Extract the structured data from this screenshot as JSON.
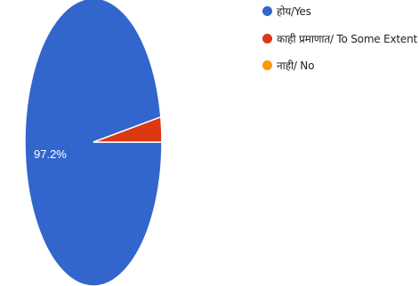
{
  "chart_data": {
    "type": "pie",
    "categories": [
      "होय/Yes",
      "काही प्रमाणात/ To Some Extent",
      "नाही/ No"
    ],
    "values": [
      97.2,
      2.8,
      0
    ],
    "data_labels": [
      "97.2%",
      "",
      ""
    ],
    "colors": [
      "#3366cc",
      "#dc3912",
      "#ff9900"
    ],
    "legend_position": "top-right",
    "title": ""
  }
}
